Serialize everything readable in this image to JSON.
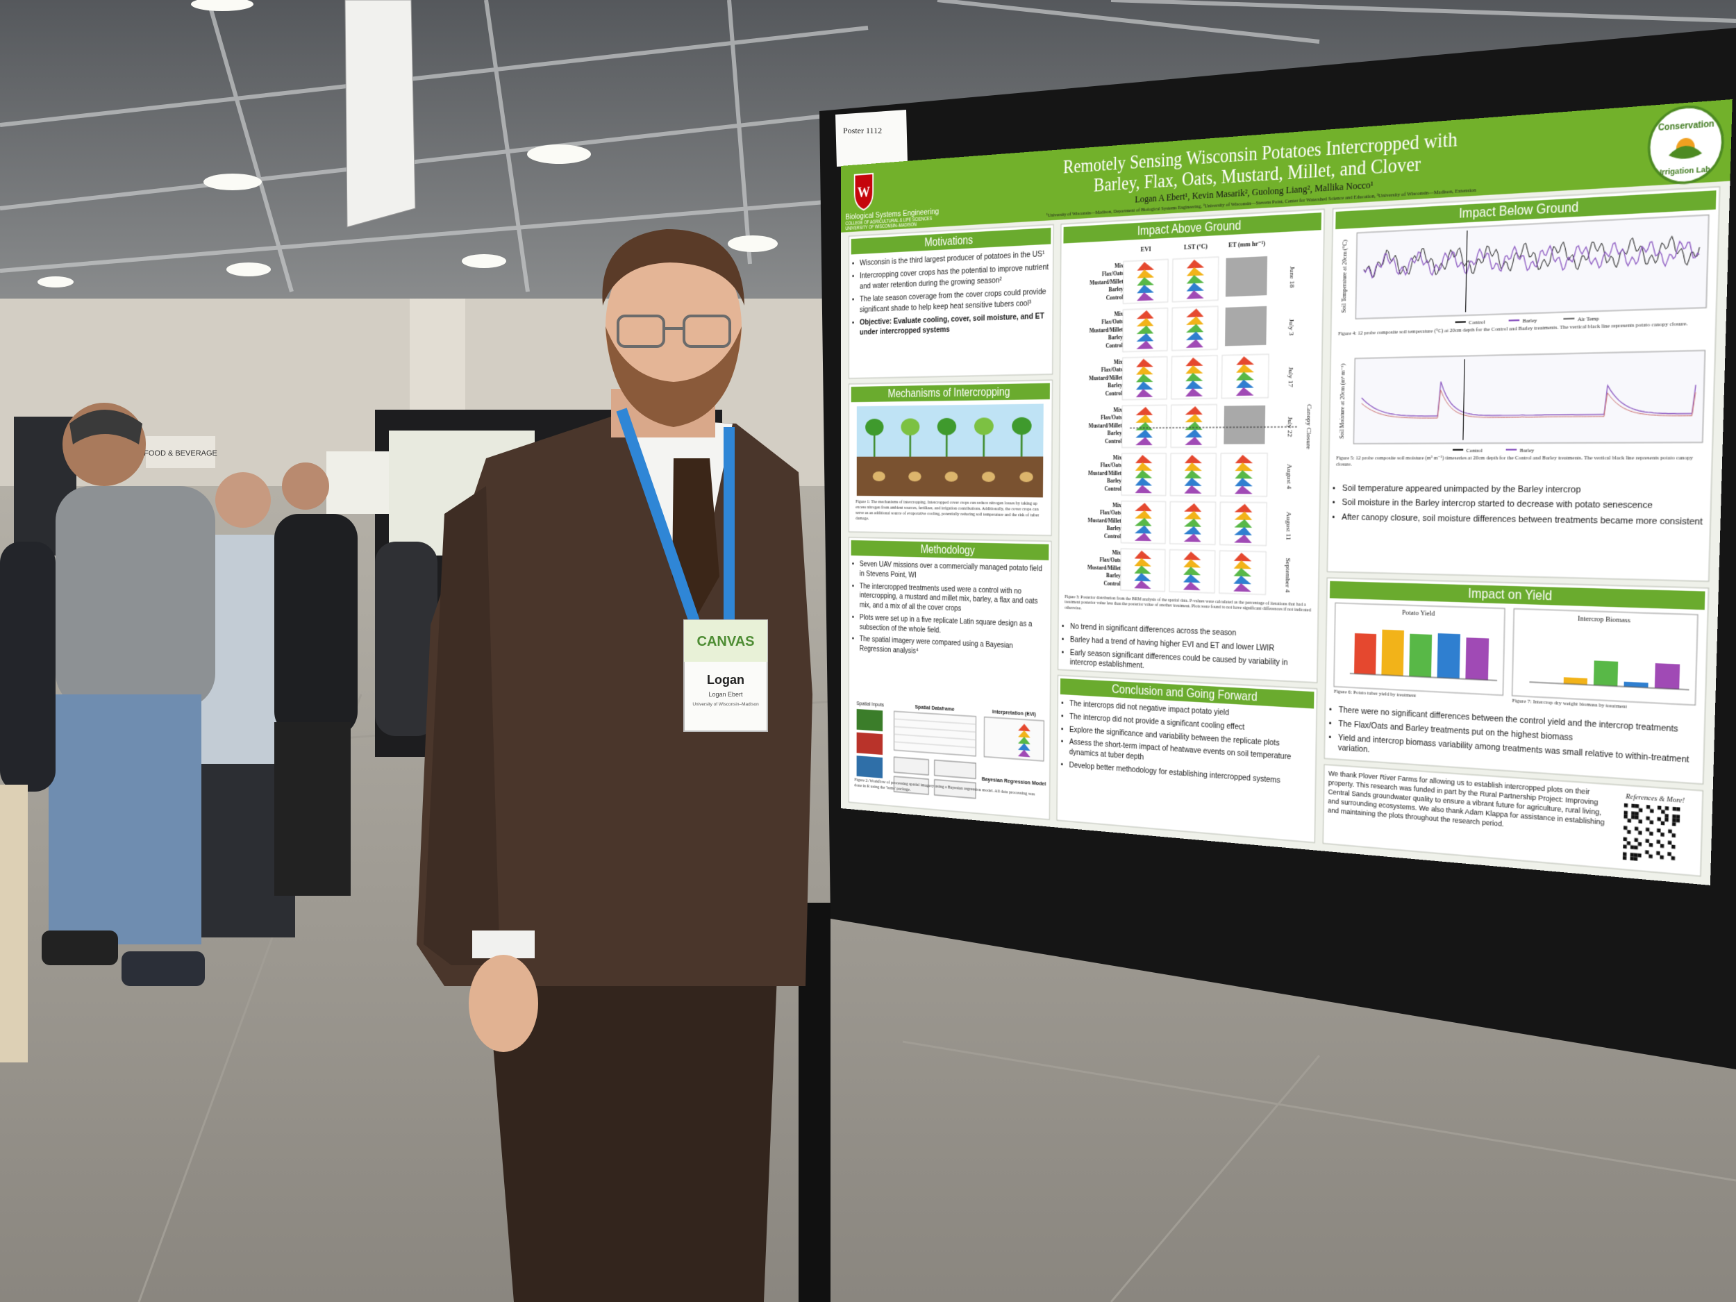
{
  "scene": {
    "sign": "FOOD & BEVERAGE",
    "poster_number": "Poster 1112",
    "badge": {
      "event": "CANVAS",
      "name": "Logan",
      "full_name": "Logan Ebert",
      "affiliation": "University of Wisconsin–Madison"
    }
  },
  "poster": {
    "title": [
      "Remotely Sensing Wisconsin Potatoes Intercropped with",
      "Barley, Flax, Oats, Mustard, Millet, and Clover"
    ],
    "authors": "Logan A Ebert¹, Kevin Masarik², Guolong Liang², Mallika Nocco¹",
    "affiliations": "¹University of Wisconsin—Madison, Department of Biological Systems Engineering, ²University of Wisconsin—Stevens Point, Center for Watershed Science and Education, ³University of Wisconsin—Madison, Extension",
    "department": [
      "Biological Systems Engineering",
      "COLLEGE OF AGRICULTURAL & LIFE SCIENCES",
      "UNIVERSITY OF WISCONSIN–MADISON"
    ],
    "lab": [
      "Conservation",
      "Irrigation Lab"
    ],
    "sections": [
      {
        "heading": "Motivations",
        "bullets": [
          "Wisconsin is the third largest producer of potatoes in the US¹",
          "Intercropping cover crops has the potential to improve nutrient and water retention during the growing season²",
          "The late season coverage from the cover crops could provide significant shade to help keep heat sensitive tubers cool³",
          "Objective: Evaluate cooling, cover, soil moisture, and ET under intercropped systems"
        ]
      },
      {
        "heading": "Mechanisms of Intercropping",
        "captions": [
          "Figure 1: The mechanisms of intercropping. Intercropped cover crops can reduce nitrogen losses by taking up excess nitrogen from ambient sources, fertilizer, and irrigation contributions. Additionally, the cover crops can serve as an additional source of evaporative cooling, potentially reducing soil temperature and the risk of tuber damage."
        ]
      },
      {
        "heading": "Methodology",
        "bullets": [
          "Seven UAV missions over a commercially managed potato field in Stevens Point, WI",
          "The intercropped treatments used were a control with no intercropping, a mustard and millet mix, barley, a flax and oats mix, and a mix of all the cover crops",
          "Plots were set up in a five replicate Latin square design as a subsection of the whole field.",
          "The spatial imagery were compared using a Bayesian Regression analysis⁴"
        ],
        "labels": [
          "Spatial Inputs",
          "Spatial Dataframe",
          "Interpretation (EVI)",
          "Bayesian Regression Model"
        ],
        "captions": [
          "Figure 2: Workflow of processing spatial imagery using a Bayesian regression model. All data processing was done in R using the 'brms' package."
        ]
      },
      {
        "heading": "Impact Above Ground",
        "columns": [
          "EVI",
          "LST (°C)",
          "ET (mm hr⁻¹)"
        ],
        "dates": [
          "June 18",
          "July 3",
          "July 17",
          "July 22",
          "August 4",
          "August 11",
          "September 4"
        ],
        "canopy": "Canopy Closure",
        "treatments": [
          "Mix",
          "Flax/Oats",
          "Mustard/Millet",
          "Barley",
          "Control"
        ],
        "captions": [
          "Figure 3: Posterior distribution from the BRM analysis of the spatial data. P-values were calculated as the percentage of iterations that had a treatment posterior value less than the posterior value of another treatment. Plots were found to not have significant differences if not indicated otherwise."
        ],
        "bullets": [
          "No trend in significant differences across the season",
          "Barley had a trend of having higher EVI and ET and lower LWIR",
          "Early season significant differences could be caused by variability in intercrop establishment."
        ]
      },
      {
        "heading": "Conclusion and Going Forward",
        "bullets": [
          "The intercrops did not negative impact potato yield",
          "The intercrop did not provide a significant cooling effect",
          "Explore the significance and variability between the replicate plots",
          "Assess the short-term impact of heatwave events on soil temperature dynamics at tuber depth",
          "Develop better methodology for establishing intercropped systems"
        ]
      },
      {
        "heading": "Impact Below Ground",
        "axes": [
          "Soil Temperature at 20cm (°C)",
          "Soil Moisture at 20cm (m³ m⁻³)"
        ],
        "legend": [
          "Control",
          "Barley",
          "Air Temp"
        ],
        "captions": [
          "Figure 4: 12 probe composite soil temperature (°C) at 20cm depth for the Control and Barley treatments. The vertical black line represents potato canopy closure.",
          "Figure 5: 12 probe composite soil moisture (m³ m⁻³) timeseries at 20cm depth for the Control and Barley treatments. The vertical black line represents potato canopy closure."
        ],
        "bullets": [
          "Soil temperature appeared unimpacted by the Barley intercrop",
          "Soil moisture in the Barley intercrop started to decrease with potato senescence",
          "After canopy closure, soil moisture differences between treatments became more consistent"
        ]
      },
      {
        "heading": "Impact on Yield",
        "charts": [
          "Potato Yield",
          "Intercrop Biomass"
        ],
        "captions": [
          "Figure 6: Potato tuber yield by treatment",
          "Figure 7: Intercrop dry weight biomass by treatment"
        ],
        "bullets": [
          "There were no significant differences between the control yield and the intercrop treatments",
          "The Flax/Oats and Barley treatments put on the highest biomass",
          "Yield and intercrop biomass variability among treatments was small relative to within-treatment variation."
        ]
      },
      {
        "paragraph": "We thank Plover River Farms for allowing us to establish intercropped plots on their property. This research was funded in part by the Rural Partnership Project: Improving Central Sands groundwater quality to ensure a vibrant future for agriculture, rural living, and surrounding ecosystems. We also thank Adam Klappa for assistance in establishing and maintaining the plots throughout the research period.",
        "link": "References & More!"
      }
    ]
  }
}
